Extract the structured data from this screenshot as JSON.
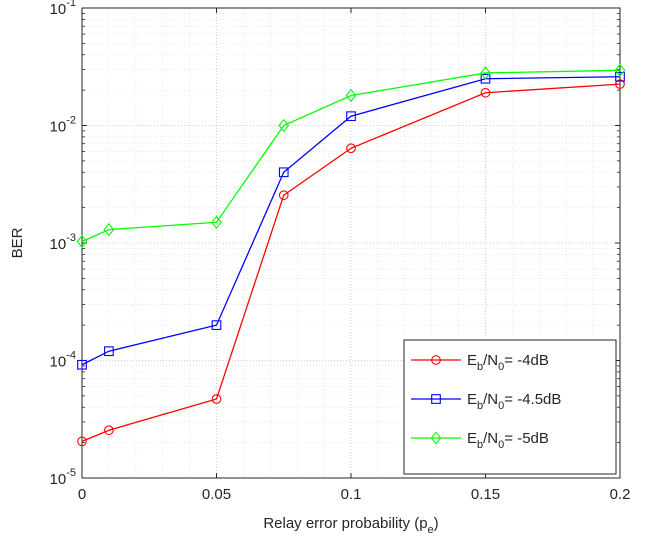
{
  "chart_data": {
    "type": "line",
    "title": "",
    "xlabel": "Relay error probability (p",
    "xlabel_sub": "e",
    "xlabel_close": ")",
    "ylabel": "BER",
    "xlim": [
      0,
      0.2
    ],
    "ylim": [
      1e-05,
      0.1
    ],
    "y_scale": "log",
    "grid": true,
    "minor_grid": true,
    "legend_position": "bottom-right",
    "x_ticks": [
      0,
      0.05,
      0.1,
      0.15,
      0.2
    ],
    "x_tick_labels": [
      "0",
      "0.05",
      "0.1",
      "0.15",
      "0.2"
    ],
    "y_ticks": [
      1e-05,
      0.0001,
      0.001,
      0.01,
      0.1
    ],
    "y_tick_labels": [
      {
        "base": "10",
        "exp": "-5"
      },
      {
        "base": "10",
        "exp": "-4"
      },
      {
        "base": "10",
        "exp": "-3"
      },
      {
        "base": "10",
        "exp": "-2"
      },
      {
        "base": "10",
        "exp": "-1"
      }
    ],
    "x": [
      0,
      0.01,
      0.05,
      0.075,
      0.1,
      0.15,
      0.2
    ],
    "series": [
      {
        "legend": {
          "pre": "E",
          "sub1": "b",
          "mid": "/N",
          "sub2": "0",
          "post": "= -4dB"
        },
        "color": "#ff0000",
        "marker": "circle",
        "values": [
          2.05e-05,
          2.55e-05,
          4.7e-05,
          0.00255,
          0.0064,
          0.019,
          0.0225
        ]
      },
      {
        "legend": {
          "pre": "E",
          "sub1": "b",
          "mid": "/N",
          "sub2": "0",
          "post": "= -4.5dB"
        },
        "color": "#0000ff",
        "marker": "square",
        "values": [
          9.2e-05,
          0.00012,
          0.0002,
          0.004,
          0.012,
          0.025,
          0.026
        ]
      },
      {
        "legend": {
          "pre": "E",
          "sub1": "b",
          "mid": "/N",
          "sub2": "0",
          "post": "= -5dB"
        },
        "color": "#00ff00",
        "marker": "diamond",
        "values": [
          0.00103,
          0.0013,
          0.0015,
          0.01,
          0.018,
          0.028,
          0.0295
        ]
      }
    ]
  }
}
